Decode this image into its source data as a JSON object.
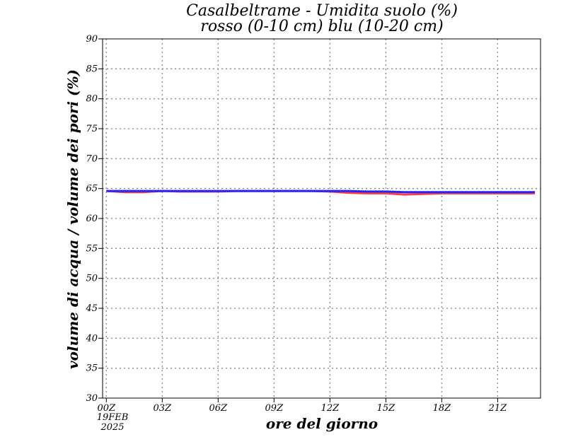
{
  "chart_data": {
    "type": "line",
    "title": "Casalbeltrame - Umidita suolo (%)",
    "subtitle": "rosso (0-10 cm) blu (10-20 cm)",
    "xlabel": "ore del giorno",
    "ylabel": "volume di acqua / volume dei pori (%)",
    "ylim": [
      30,
      90
    ],
    "xlim": [
      -0.2,
      23.3
    ],
    "yticks": [
      "30",
      "35",
      "40",
      "45",
      "50",
      "55",
      "60",
      "65",
      "70",
      "75",
      "80",
      "85",
      "90"
    ],
    "xticks": [
      {
        "x": 0,
        "label": "00Z"
      },
      {
        "x": 3,
        "label": "03Z"
      },
      {
        "x": 6,
        "label": "06Z"
      },
      {
        "x": 9,
        "label": "09Z"
      },
      {
        "x": 12,
        "label": "12Z"
      },
      {
        "x": 15,
        "label": "15Z"
      },
      {
        "x": 18,
        "label": "18Z"
      },
      {
        "x": 21,
        "label": "21Z"
      }
    ],
    "date_label": [
      "19FEB",
      "2025"
    ],
    "grid": true,
    "series": [
      {
        "color": "#ff3b3b",
        "x": [
          0,
          1,
          2,
          3,
          4,
          5,
          6,
          7,
          8,
          9,
          10,
          11,
          12,
          13,
          14,
          15,
          16,
          17,
          18,
          19,
          20,
          21,
          22,
          23
        ],
        "values": [
          64.6,
          64.4,
          64.4,
          64.6,
          64.5,
          64.5,
          64.5,
          64.6,
          64.6,
          64.6,
          64.6,
          64.6,
          64.5,
          64.3,
          64.2,
          64.2,
          64.0,
          64.1,
          64.2,
          64.2,
          64.2,
          64.2,
          64.2,
          64.2
        ]
      },
      {
        "color": "#2323ff",
        "x": [
          0,
          1,
          2,
          3,
          4,
          5,
          6,
          7,
          8,
          9,
          10,
          11,
          12,
          13,
          14,
          15,
          16,
          17,
          18,
          19,
          20,
          21,
          22,
          23
        ],
        "values": [
          64.6,
          64.6,
          64.6,
          64.6,
          64.6,
          64.6,
          64.6,
          64.6,
          64.6,
          64.6,
          64.6,
          64.6,
          64.6,
          64.6,
          64.5,
          64.5,
          64.4,
          64.4,
          64.4,
          64.4,
          64.4,
          64.4,
          64.4,
          64.4
        ]
      }
    ]
  }
}
